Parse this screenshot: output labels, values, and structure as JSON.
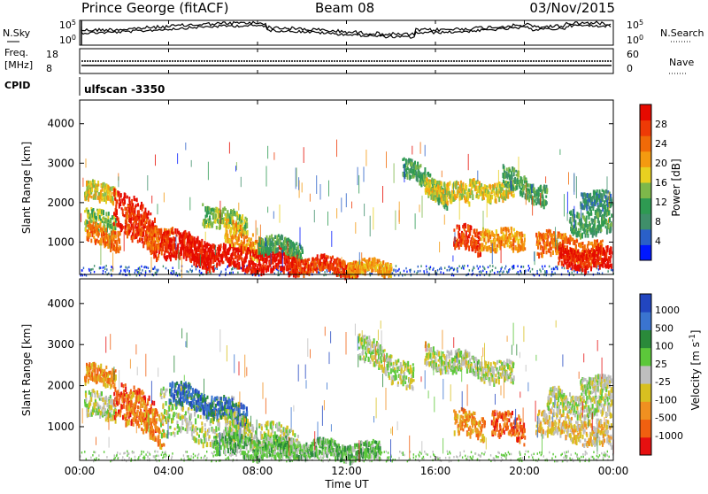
{
  "header": {
    "station": "Prince George (fitACF)",
    "beam": "Beam 08",
    "date": "03/Nov/2015"
  },
  "nsky_panel": {
    "left_label": "N.Sky",
    "right_label": "N.Search",
    "left_ticks": [
      "10^5",
      "10^0"
    ],
    "right_ticks": [
      "10^5",
      "10^0"
    ]
  },
  "freq_panel": {
    "left_label_1": "Freq.",
    "left_label_2": "[MHz]",
    "left_ticks": [
      "18",
      "8"
    ],
    "right_label": "Nave",
    "right_ticks": [
      "60",
      "0"
    ]
  },
  "cpid": {
    "label": "CPID",
    "value": "ulfscan -3350"
  },
  "colors": {
    "power": [
      "#0018ff",
      "#2a60c8",
      "#3f8f6a",
      "#2e9a52",
      "#7db84a",
      "#e8d020",
      "#f49a10",
      "#f06a08",
      "#ee3a06",
      "#e60a00"
    ],
    "velocity": [
      "#2246c0",
      "#3a74d0",
      "#2a8a3a",
      "#5cc83a",
      "#bebebe",
      "#d8c020",
      "#f09020",
      "#f06010",
      "#e61010"
    ],
    "ground_scatter": "#bebebe"
  },
  "chart_data": [
    {
      "type": "heatmap",
      "title": "Power",
      "xlabel": "",
      "ylabel": "Slant Range [km]",
      "x_ticks": [
        "00:00",
        "04:00",
        "08:00",
        "12:00",
        "16:00",
        "20:00",
        "00:00"
      ],
      "y_ticks": [
        "1000",
        "2000",
        "3000",
        "4000"
      ],
      "ylim": [
        180,
        4600
      ],
      "colorbar_label": "Power [dB]",
      "colorbar_ticks": [
        "4",
        "8",
        "12",
        "16",
        "20",
        "24",
        "28"
      ]
    },
    {
      "type": "heatmap",
      "title": "Velocity",
      "xlabel": "Time UT",
      "ylabel": "Slant Range [km]",
      "x_ticks": [
        "00:00",
        "04:00",
        "08:00",
        "12:00",
        "16:00",
        "20:00",
        "00:00"
      ],
      "y_ticks": [
        "1000",
        "2000",
        "3000",
        "4000"
      ],
      "ylim": [
        180,
        4600
      ],
      "colorbar_label": "Velocity [m s^-1]",
      "colorbar_ticks": [
        "1000",
        "500",
        "100",
        "25",
        "-25",
        "-100",
        "-500",
        "-1000"
      ]
    }
  ]
}
